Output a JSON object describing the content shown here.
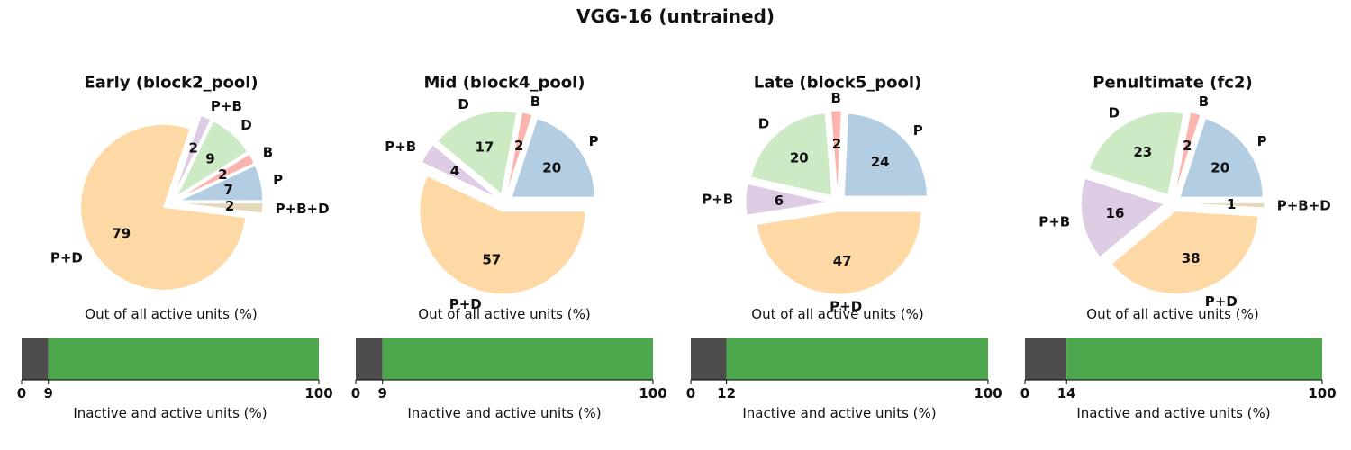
{
  "figure": {
    "title": "VGG-16 (untrained)"
  },
  "chart_data": [
    {
      "type": "pie",
      "title": "Early (block2_pool)",
      "xlabel": "Out of all active units (%)",
      "slices": [
        {
          "label": "P",
          "value": 7,
          "color": "#b3cde3"
        },
        {
          "label": "B",
          "value": 2,
          "color": "#fbb4ae"
        },
        {
          "label": "D",
          "value": 9,
          "color": "#ccebc5"
        },
        {
          "label": "P+B",
          "value": 2,
          "color": "#decbe4"
        },
        {
          "label": "P+D",
          "value": 79,
          "color": "#fed9a6"
        },
        {
          "label": "P+B+D",
          "value": 2,
          "color": "#e5d8bd"
        }
      ],
      "bar": {
        "type": "stacked-bar",
        "xlabel": "Inactive and active units (%)",
        "inactive": 9,
        "total": 100,
        "ticks": [
          0,
          9,
          100
        ],
        "inactive_color": "#4d4d4d",
        "active_color": "#4da74d"
      }
    },
    {
      "type": "pie",
      "title": "Mid (block4_pool)",
      "xlabel": "Out of all active units (%)",
      "slices": [
        {
          "label": "P",
          "value": 20,
          "color": "#b3cde3"
        },
        {
          "label": "B",
          "value": 2,
          "color": "#fbb4ae"
        },
        {
          "label": "D",
          "value": 17,
          "color": "#ccebc5"
        },
        {
          "label": "P+B",
          "value": 4,
          "color": "#decbe4"
        },
        {
          "label": "P+D",
          "value": 57,
          "color": "#fed9a6"
        }
      ],
      "bar": {
        "type": "stacked-bar",
        "xlabel": "Inactive and active units (%)",
        "inactive": 9,
        "total": 100,
        "ticks": [
          0,
          9,
          100
        ],
        "inactive_color": "#4d4d4d",
        "active_color": "#4da74d"
      }
    },
    {
      "type": "pie",
      "title": "Late (block5_pool)",
      "xlabel": "Out of all active units (%)",
      "slices": [
        {
          "label": "P",
          "value": 24,
          "color": "#b3cde3"
        },
        {
          "label": "B",
          "value": 2,
          "color": "#fbb4ae"
        },
        {
          "label": "D",
          "value": 20,
          "color": "#ccebc5"
        },
        {
          "label": "P+B",
          "value": 6,
          "color": "#decbe4"
        },
        {
          "label": "P+D",
          "value": 47,
          "color": "#fed9a6"
        }
      ],
      "bar": {
        "type": "stacked-bar",
        "xlabel": "Inactive and active units (%)",
        "inactive": 12,
        "total": 100,
        "ticks": [
          0,
          12,
          100
        ],
        "inactive_color": "#4d4d4d",
        "active_color": "#4da74d"
      }
    },
    {
      "type": "pie",
      "title": "Penultimate (fc2)",
      "xlabel": "Out of all active units (%)",
      "slices": [
        {
          "label": "P",
          "value": 20,
          "color": "#b3cde3"
        },
        {
          "label": "B",
          "value": 2,
          "color": "#fbb4ae"
        },
        {
          "label": "D",
          "value": 23,
          "color": "#ccebc5"
        },
        {
          "label": "P+B",
          "value": 16,
          "color": "#decbe4"
        },
        {
          "label": "P+D",
          "value": 38,
          "color": "#fed9a6"
        },
        {
          "label": "P+B+D",
          "value": 1,
          "color": "#e5d8bd"
        }
      ],
      "bar": {
        "type": "stacked-bar",
        "xlabel": "Inactive and active units (%)",
        "inactive": 14,
        "total": 100,
        "ticks": [
          0,
          14,
          100
        ],
        "inactive_color": "#4d4d4d",
        "active_color": "#4da74d"
      }
    }
  ]
}
